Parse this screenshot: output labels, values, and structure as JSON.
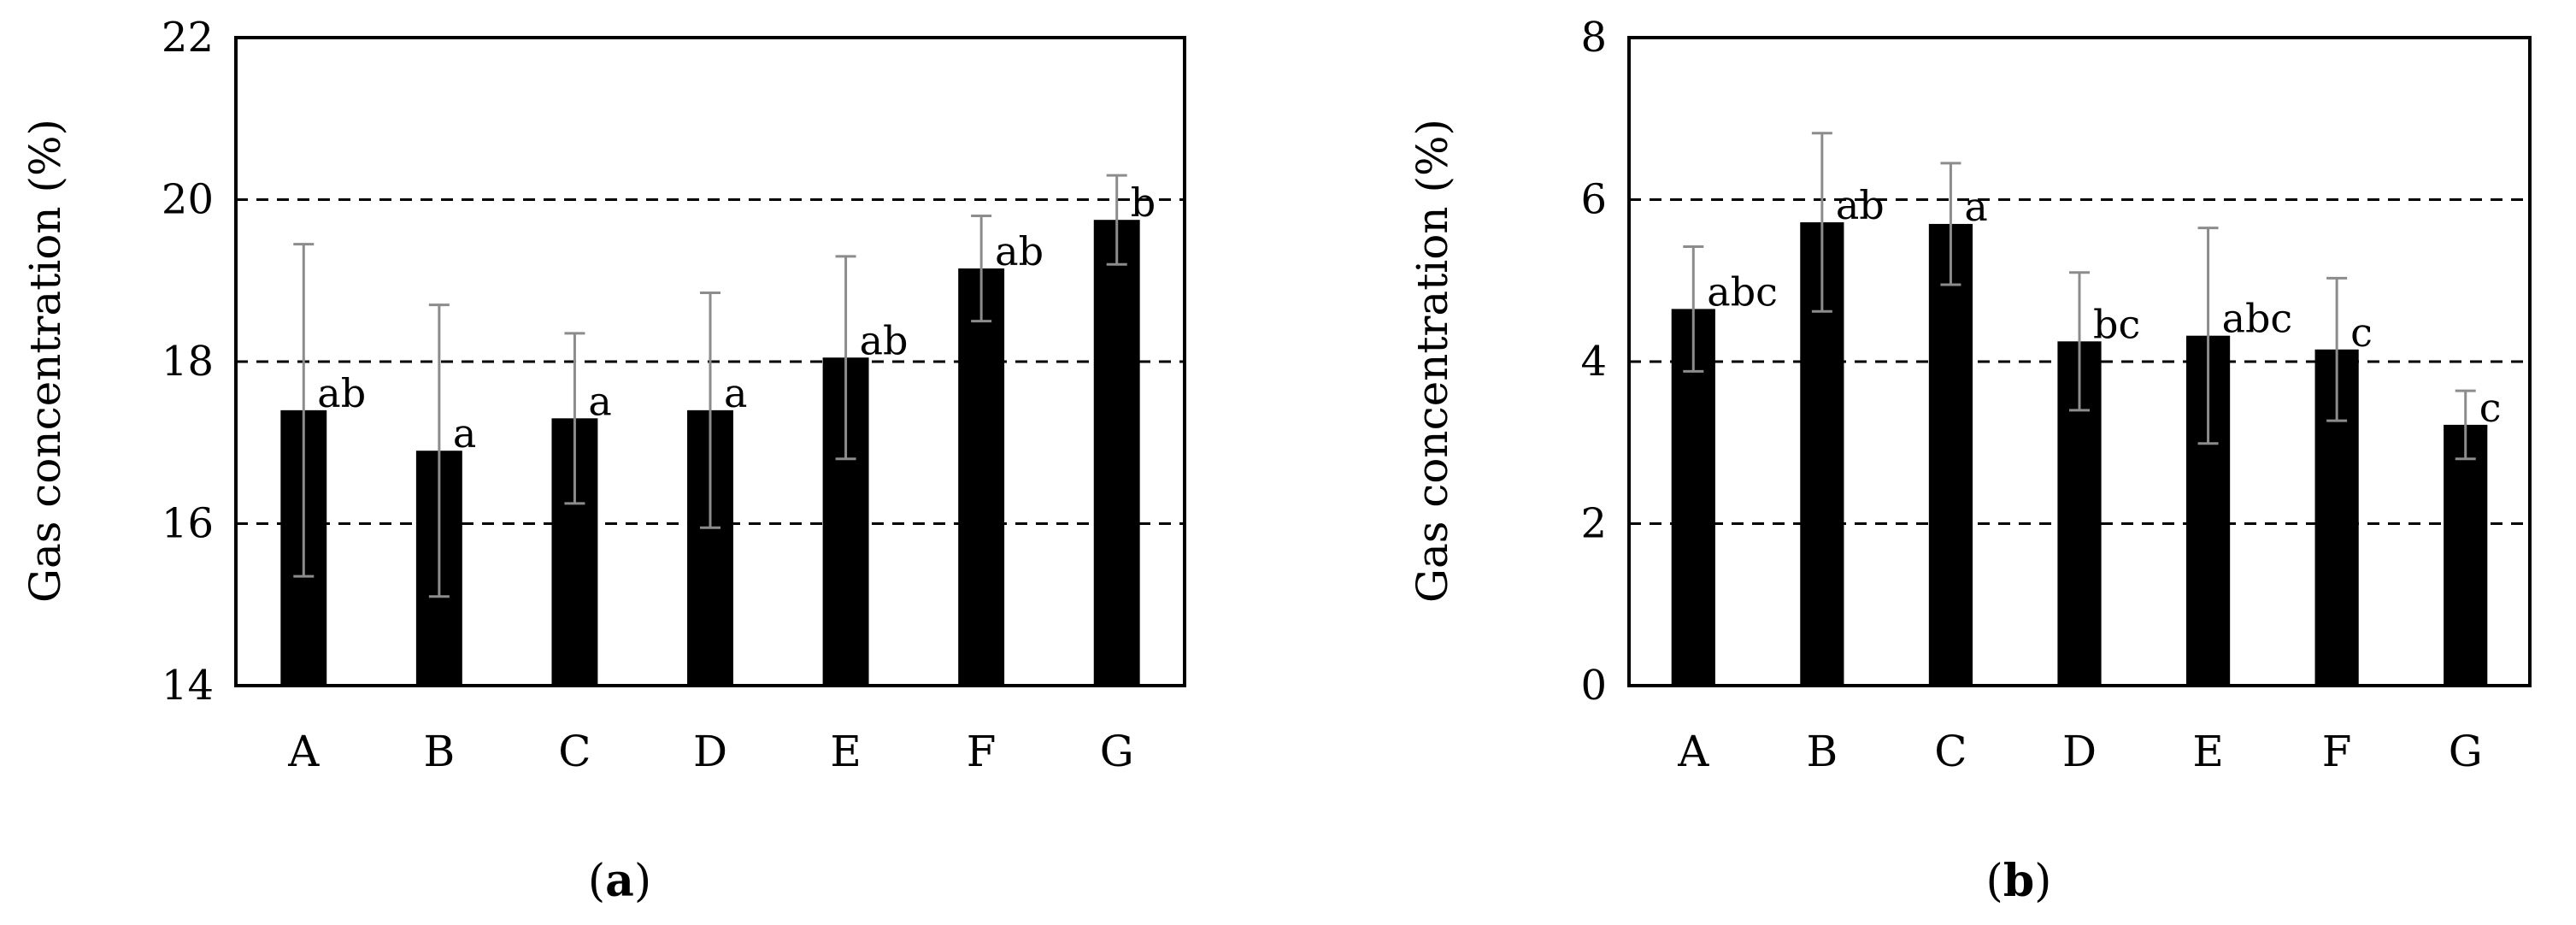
{
  "chart_data": [
    {
      "type": "bar",
      "ylabel": "Gas concentration (%)",
      "xlabel": "",
      "caption": {
        "open": "(",
        "letter": "a",
        "close": ")"
      },
      "categories": [
        "A",
        "B",
        "C",
        "D",
        "E",
        "F",
        "G"
      ],
      "values": [
        17.4,
        16.9,
        17.3,
        17.4,
        18.05,
        19.15,
        19.75
      ],
      "error": [
        2.05,
        1.8,
        1.05,
        1.45,
        1.25,
        0.65,
        0.55
      ],
      "significance": [
        "ab",
        "a",
        "a",
        "a",
        "ab",
        "ab",
        "b"
      ],
      "ylim": [
        14,
        22
      ],
      "yticks": [
        "14",
        "16",
        "18",
        "20",
        "22"
      ],
      "gridlines": [
        16,
        18,
        20
      ],
      "grid": "dashed horizontal",
      "legend": "none",
      "bar_color": "#000000",
      "error_bar_color": "#8c8c8c"
    },
    {
      "type": "bar",
      "ylabel": "Gas concentration (%)",
      "xlabel": "",
      "caption": {
        "open": "(",
        "letter": "b",
        "close": ")"
      },
      "categories": [
        "A",
        "B",
        "C",
        "D",
        "E",
        "F",
        "G"
      ],
      "values": [
        4.65,
        5.72,
        5.7,
        4.25,
        4.32,
        4.15,
        3.22
      ],
      "error": [
        0.77,
        1.1,
        0.75,
        0.85,
        1.33,
        0.88,
        0.42
      ],
      "significance": [
        "abc",
        "ab",
        "a",
        "bc",
        "abc",
        "c",
        "c"
      ],
      "ylim": [
        0,
        8
      ],
      "yticks": [
        "0",
        "2",
        "4",
        "6",
        "8"
      ],
      "gridlines": [
        2,
        4,
        6
      ],
      "grid": "dashed horizontal",
      "legend": "none",
      "bar_color": "#000000",
      "error_bar_color": "#8c8c8c"
    }
  ]
}
